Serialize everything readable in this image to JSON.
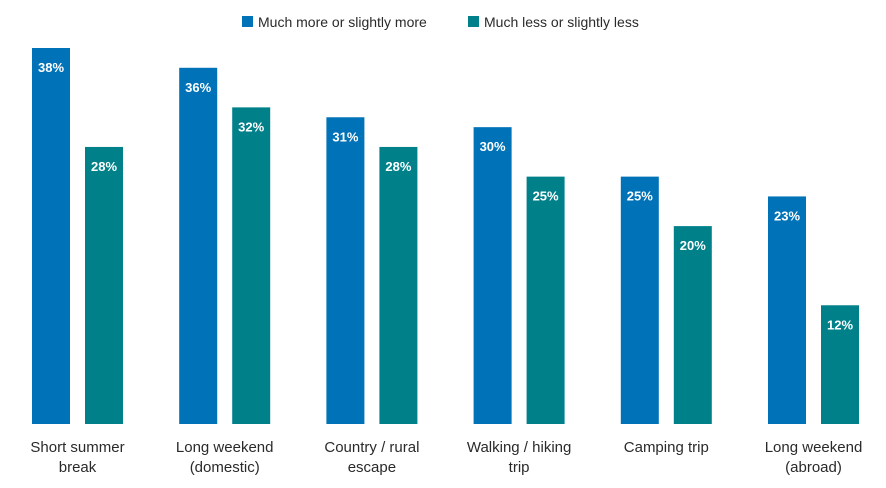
{
  "chart_data": {
    "type": "bar",
    "title": "",
    "xlabel": "",
    "ylabel": "",
    "ylim": [
      0,
      38
    ],
    "grid": false,
    "legend_position": "top-center",
    "categories": [
      [
        "Short summer",
        "break"
      ],
      [
        "Long weekend",
        "(domestic)"
      ],
      [
        "Country / rural",
        "escape"
      ],
      [
        "Walking / hiking",
        "trip"
      ],
      [
        "Camping trip"
      ],
      [
        "Long weekend",
        "(abroad)"
      ]
    ],
    "series": [
      {
        "name": "Much more or slightly more",
        "color": "#0072b8",
        "values": [
          38,
          36,
          31,
          30,
          25,
          23
        ],
        "labels": [
          "38%",
          "36%",
          "31%",
          "30%",
          "25%",
          "23%"
        ]
      },
      {
        "name": "Much less or slightly less",
        "color": "#00818a",
        "values": [
          28,
          32,
          28,
          25,
          20,
          12
        ],
        "labels": [
          "28%",
          "32%",
          "28%",
          "25%",
          "20%",
          "12%"
        ]
      }
    ]
  }
}
